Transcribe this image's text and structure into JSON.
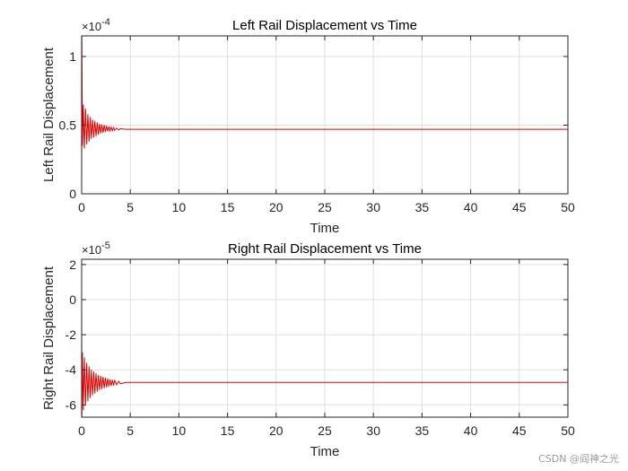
{
  "chart_data": [
    {
      "type": "line",
      "title": "Left Rail Displacement vs Time",
      "xlabel": "Time",
      "ylabel": "Left Rail Displacement",
      "xlim": [
        0,
        50
      ],
      "ylim": [
        0,
        1.15
      ],
      "y_multiplier_text": "×10",
      "y_exponent": "-4",
      "grid": true,
      "x_ticks": [
        "0",
        "5",
        "10",
        "15",
        "20",
        "25",
        "30",
        "35",
        "40",
        "45",
        "50"
      ],
      "y_ticks": [
        "0",
        "0.5",
        "1"
      ],
      "series": [
        {
          "name": "left rail displacement",
          "color": "#e00000",
          "x": [
            0,
            0.02,
            0.08,
            0.17,
            0.28,
            0.4,
            0.52,
            0.64,
            0.76,
            0.88,
            1.0,
            1.12,
            1.24,
            1.36,
            1.48,
            1.6,
            1.72,
            1.84,
            1.96,
            2.08,
            2.2,
            2.32,
            2.44,
            2.56,
            2.68,
            2.8,
            2.92,
            3.04,
            3.16,
            3.28,
            3.4,
            3.6,
            3.8,
            4.0,
            4.5,
            5,
            10,
            20,
            30,
            40,
            50
          ],
          "values": [
            0,
            1.15,
            0.35,
            0.65,
            0.33,
            0.62,
            0.36,
            0.58,
            0.38,
            0.56,
            0.4,
            0.54,
            0.41,
            0.53,
            0.42,
            0.52,
            0.43,
            0.51,
            0.44,
            0.505,
            0.445,
            0.5,
            0.45,
            0.495,
            0.455,
            0.49,
            0.458,
            0.485,
            0.46,
            0.482,
            0.462,
            0.478,
            0.465,
            0.474,
            0.47,
            0.47,
            0.47,
            0.47,
            0.47,
            0.47,
            0.47
          ]
        }
      ]
    },
    {
      "type": "line",
      "title": "Right Rail Displacement vs Time",
      "xlabel": "Time",
      "ylabel": "Right Rail Displacement",
      "xlim": [
        0,
        50
      ],
      "ylim": [
        -6.7,
        2.3
      ],
      "y_multiplier_text": "×10",
      "y_exponent": "-5",
      "grid": true,
      "x_ticks": [
        "0",
        "5",
        "10",
        "15",
        "20",
        "25",
        "30",
        "35",
        "40",
        "45",
        "50"
      ],
      "y_ticks": [
        "-6",
        "-4",
        "-2",
        "0",
        "2"
      ],
      "series": [
        {
          "name": "right rail displacement",
          "color": "#e00000",
          "x": [
            0,
            0.02,
            0.08,
            0.17,
            0.28,
            0.4,
            0.52,
            0.64,
            0.76,
            0.88,
            1.0,
            1.12,
            1.24,
            1.36,
            1.48,
            1.6,
            1.72,
            1.84,
            1.96,
            2.08,
            2.2,
            2.32,
            2.44,
            2.56,
            2.68,
            2.8,
            2.92,
            3.04,
            3.16,
            3.28,
            3.4,
            3.6,
            3.8,
            4.0,
            4.5,
            5,
            10,
            20,
            30,
            40,
            50
          ],
          "values": [
            0,
            -6.7,
            -3.0,
            -6.3,
            -3.3,
            -6.0,
            -3.6,
            -5.8,
            -3.8,
            -5.6,
            -4.0,
            -5.45,
            -4.1,
            -5.35,
            -4.2,
            -5.25,
            -4.3,
            -5.15,
            -4.35,
            -5.1,
            -4.4,
            -5.05,
            -4.45,
            -5.0,
            -4.5,
            -4.95,
            -4.55,
            -4.92,
            -4.58,
            -4.9,
            -4.6,
            -4.85,
            -4.65,
            -4.8,
            -4.72,
            -4.72,
            -4.72,
            -4.72,
            -4.72,
            -4.72,
            -4.72
          ]
        }
      ]
    }
  ],
  "watermark": "CSDN @阎神之光"
}
